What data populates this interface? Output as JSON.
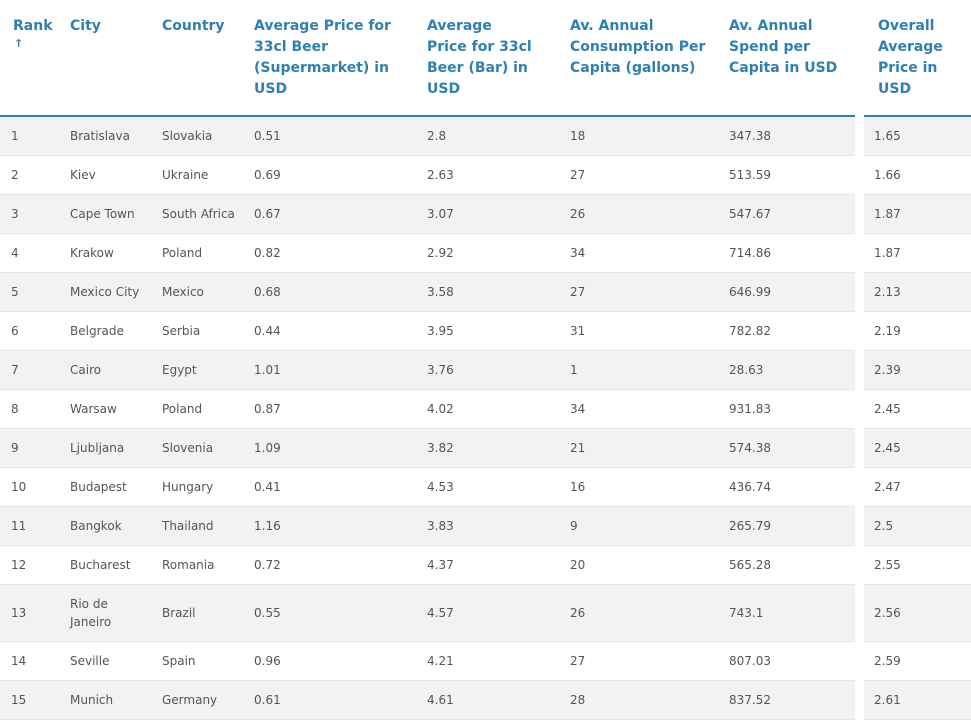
{
  "headers": {
    "rank": "Rank",
    "city": "City",
    "country": "Country",
    "supermarket": "Average Price for 33cl Beer (Supermarket) in USD",
    "bar": "Average Price for 33cl Beer (Bar) in USD",
    "consumption": "Av. Annual Consumption Per Capita (gallons)",
    "spend": "Av. Annual Spend per Capita in USD",
    "overall": "Overall Average Price in USD"
  },
  "sort_indicator": "↑",
  "accent_color": "#2e80b3",
  "rows": [
    {
      "rank": "1",
      "city": "Bratislava",
      "country": "Slovakia",
      "supermarket": "0.51",
      "bar": "2.8",
      "consumption": "18",
      "spend": "347.38",
      "overall": "1.65"
    },
    {
      "rank": "2",
      "city": "Kiev",
      "country": "Ukraine",
      "supermarket": "0.69",
      "bar": "2.63",
      "consumption": "27",
      "spend": "513.59",
      "overall": "1.66"
    },
    {
      "rank": "3",
      "city": "Cape Town",
      "country": "South Africa",
      "supermarket": "0.67",
      "bar": "3.07",
      "consumption": "26",
      "spend": "547.67",
      "overall": "1.87"
    },
    {
      "rank": "4",
      "city": "Krakow",
      "country": "Poland",
      "supermarket": "0.82",
      "bar": "2.92",
      "consumption": "34",
      "spend": "714.86",
      "overall": "1.87"
    },
    {
      "rank": "5",
      "city": "Mexico City",
      "country": "Mexico",
      "supermarket": "0.68",
      "bar": "3.58",
      "consumption": "27",
      "spend": "646.99",
      "overall": "2.13"
    },
    {
      "rank": "6",
      "city": "Belgrade",
      "country": "Serbia",
      "supermarket": "0.44",
      "bar": "3.95",
      "consumption": "31",
      "spend": "782.82",
      "overall": "2.19"
    },
    {
      "rank": "7",
      "city": "Cairo",
      "country": "Egypt",
      "supermarket": "1.01",
      "bar": "3.76",
      "consumption": "1",
      "spend": "28.63",
      "overall": "2.39"
    },
    {
      "rank": "8",
      "city": "Warsaw",
      "country": "Poland",
      "supermarket": "0.87",
      "bar": "4.02",
      "consumption": "34",
      "spend": "931.83",
      "overall": "2.45"
    },
    {
      "rank": "9",
      "city": "Ljubljana",
      "country": "Slovenia",
      "supermarket": "1.09",
      "bar": "3.82",
      "consumption": "21",
      "spend": "574.38",
      "overall": "2.45"
    },
    {
      "rank": "10",
      "city": "Budapest",
      "country": "Hungary",
      "supermarket": "0.41",
      "bar": "4.53",
      "consumption": "16",
      "spend": "436.74",
      "overall": "2.47"
    },
    {
      "rank": "11",
      "city": "Bangkok",
      "country": "Thailand",
      "supermarket": "1.16",
      "bar": "3.83",
      "consumption": "9",
      "spend": "265.79",
      "overall": "2.5"
    },
    {
      "rank": "12",
      "city": "Bucharest",
      "country": "Romania",
      "supermarket": "0.72",
      "bar": "4.37",
      "consumption": "20",
      "spend": "565.28",
      "overall": "2.55"
    },
    {
      "rank": "13",
      "city": "Rio de Janeiro",
      "country": "Brazil",
      "supermarket": "0.55",
      "bar": "4.57",
      "consumption": "26",
      "spend": "743.1",
      "overall": "2.56"
    },
    {
      "rank": "14",
      "city": "Seville",
      "country": "Spain",
      "supermarket": "0.96",
      "bar": "4.21",
      "consumption": "27",
      "spend": "807.03",
      "overall": "2.59"
    },
    {
      "rank": "15",
      "city": "Munich",
      "country": "Germany",
      "supermarket": "0.61",
      "bar": "4.61",
      "consumption": "28",
      "spend": "837.52",
      "overall": "2.61"
    }
  ]
}
